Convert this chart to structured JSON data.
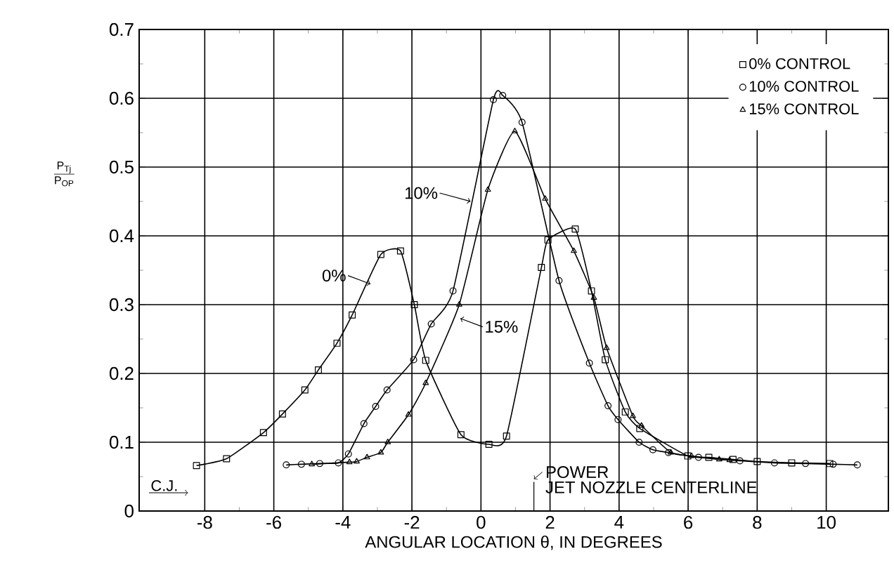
{
  "chart_data": {
    "type": "line",
    "xlabel": "ANGULAR LOCATION θ, IN DEGREES",
    "ylabel": "\\frac{\\mathrm{P}_{\\mathrm{Tj}}}{\\mathrm{P}_{\\mathrm{OP}}}",
    "xlim": [
      -9.9,
      11.8
    ],
    "ylim": [
      0,
      0.7
    ],
    "xticks": [
      -8,
      -6,
      -4,
      -2,
      0,
      2,
      4,
      6,
      8,
      10
    ],
    "yticks": [
      0,
      0.1,
      0.2,
      0.3,
      0.4,
      0.5,
      0.6,
      0.7
    ],
    "grid": true,
    "legend": "top right",
    "line_style": "solid",
    "series": [
      {
        "name": "0% CONTROL",
        "color": "#000000",
        "marker": "square",
        "x": [
          -8.24,
          -7.37,
          -6.3,
          -5.75,
          -5.1,
          -4.71,
          -4.17,
          -3.73,
          -2.9,
          -2.33,
          -1.93,
          -1.6,
          -0.58,
          0.23,
          0.74,
          1.75,
          1.94,
          2.73,
          3.2,
          3.6,
          4.18,
          4.6,
          5.99,
          6.6,
          7.3,
          8.0,
          9.0,
          10.1
        ],
        "values": [
          0.066,
          0.076,
          0.114,
          0.141,
          0.176,
          0.205,
          0.244,
          0.285,
          0.373,
          0.378,
          0.3,
          0.219,
          0.111,
          0.097,
          0.109,
          0.354,
          0.394,
          0.41,
          0.32,
          0.22,
          0.144,
          0.12,
          0.08,
          0.078,
          0.075,
          0.072,
          0.07,
          0.069
        ]
      },
      {
        "name": "10% CONTROL",
        "color": "#000000",
        "marker": "circle",
        "x": [
          -5.64,
          -5.2,
          -4.67,
          -4.13,
          -3.84,
          -3.39,
          -3.05,
          -2.72,
          -1.95,
          -1.44,
          -0.81,
          0.36,
          0.63,
          1.19,
          2.26,
          3.14,
          3.68,
          3.97,
          4.58,
          4.98,
          5.43,
          6.3,
          7.5,
          8.5,
          9.4,
          10.2,
          10.9
        ],
        "values": [
          0.067,
          0.068,
          0.069,
          0.07,
          0.083,
          0.127,
          0.152,
          0.176,
          0.22,
          0.272,
          0.32,
          0.598,
          0.604,
          0.565,
          0.335,
          0.215,
          0.153,
          0.133,
          0.1,
          0.089,
          0.085,
          0.078,
          0.073,
          0.07,
          0.069,
          0.068,
          0.067
        ]
      },
      {
        "name": "15% CONTROL",
        "color": "#000000",
        "marker": "triangle",
        "x": [
          -4.9,
          -3.81,
          -3.6,
          -3.3,
          -2.9,
          -2.7,
          -2.1,
          -1.6,
          -0.63,
          0.2,
          0.98,
          1.86,
          2.69,
          3.27,
          3.64,
          4.4,
          4.65,
          5.5,
          6.1,
          6.9,
          7.2
        ],
        "values": [
          0.068,
          0.071,
          0.072,
          0.078,
          0.085,
          0.1,
          0.14,
          0.186,
          0.3,
          0.467,
          0.552,
          0.454,
          0.378,
          0.31,
          0.237,
          0.138,
          0.124,
          0.085,
          0.08,
          0.075,
          0.074
        ]
      }
    ],
    "annotations": [
      {
        "text": "10%",
        "x": -0.3,
        "y": 0.45
      },
      {
        "text": "0%",
        "x": -3.2,
        "y": 0.33
      },
      {
        "text": "15%",
        "x": -0.6,
        "y": 0.28
      },
      "C.J.",
      "POWER",
      "JET NOZZLE CENTERLINE"
    ]
  }
}
